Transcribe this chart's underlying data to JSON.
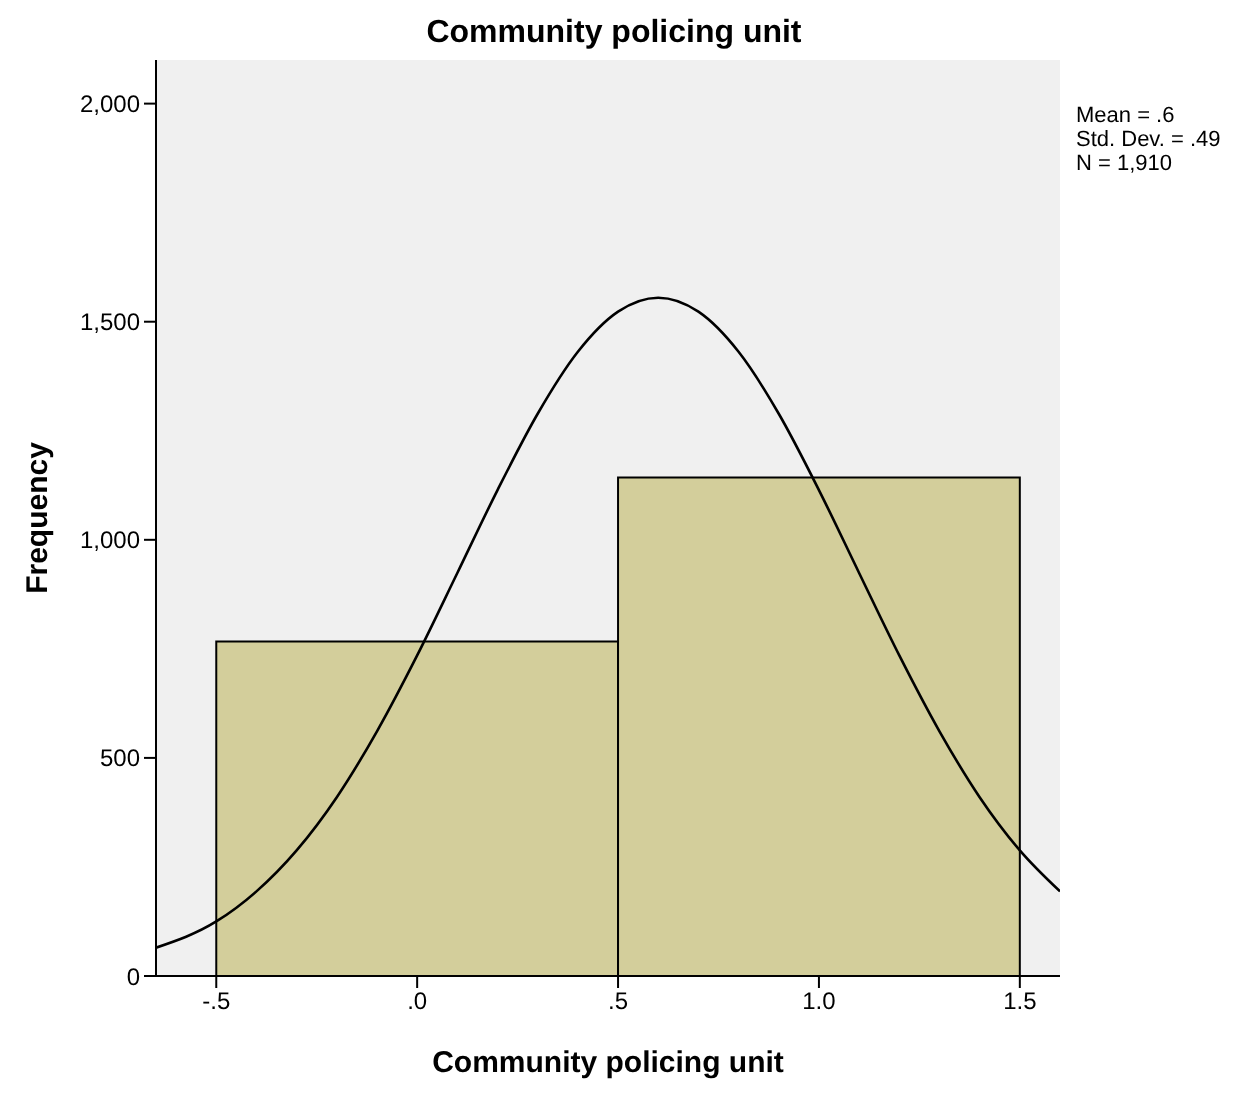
{
  "chart_data": {
    "type": "histogram",
    "title": "Community policing unit",
    "xlabel": "Community policing unit",
    "ylabel": "Frequency",
    "bins": [
      -0.5,
      0.5,
      1.5
    ],
    "values": [
      767,
      1143
    ],
    "color": "#d3ce9b",
    "series": [
      {
        "type": "line",
        "color": "#000000",
        "x": [
          -0.65,
          -0.5,
          -0.4,
          -0.3,
          -0.2,
          -0.1,
          0,
          0.1,
          0.2,
          0.3,
          0.4,
          0.5,
          0.6,
          0.7,
          0.8,
          0.9,
          1.0,
          1.1,
          1.2,
          1.3,
          1.4,
          1.5,
          1.6
        ],
        "values": [
          65,
          125,
          194,
          288,
          410,
          561,
          735,
          924,
          1114,
          1289,
          1431,
          1523,
          1555,
          1523,
          1431,
          1289,
          1114,
          924,
          735,
          561,
          410,
          288,
          194
        ]
      }
    ],
    "xlim": [
      -0.65,
      1.6
    ],
    "xticks": [
      {
        "value": -0.5,
        "label": "-.5"
      },
      {
        "value": 0,
        "label": ".0"
      },
      {
        "value": 0.5,
        "label": ".5"
      },
      {
        "value": 1,
        "label": "1.0"
      },
      {
        "value": 1.5,
        "label": "1.5"
      }
    ],
    "ylim": [
      0,
      2100
    ],
    "yticks": [
      0,
      500,
      {
        "value": 1000,
        "label": "1,000"
      },
      {
        "value": 1500,
        "label": "1,500"
      },
      {
        "value": 2000,
        "label": "2,000"
      }
    ],
    "annotations": [
      "Mean = .6",
      "Std. Dev. = .49",
      "N = 1,910"
    ]
  }
}
